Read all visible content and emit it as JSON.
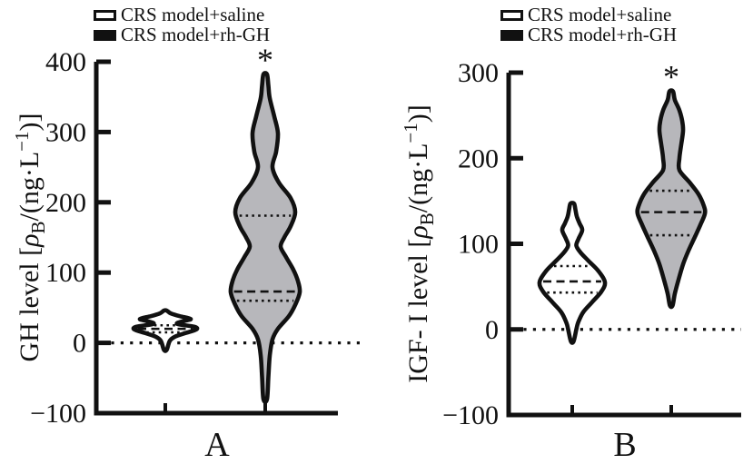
{
  "colors": {
    "ink": "#111111",
    "gray_fill": "#b7b7bb",
    "white_fill": "#ffffff"
  },
  "chart_data": [
    {
      "type": "violin",
      "panel_label": "A",
      "ylabel": "GH level [ρB/(ng·L⁻¹)]",
      "ylabel_parts": {
        "pre": "GH level [",
        "rho": "ρ",
        "rho_sub": "B",
        "mid": "/(ng·L",
        "sup": "−1",
        "post": ")]"
      },
      "ylim": [
        -100,
        400
      ],
      "yticks": [
        400,
        300,
        200,
        100,
        0,
        -100
      ],
      "zero_line": 0,
      "significance_marker": "*",
      "legend": [
        {
          "swatch": "open",
          "label": "CRS model+saline"
        },
        {
          "swatch": "filled",
          "label": "CRS model+rh-GH"
        }
      ],
      "groups": [
        {
          "name": "CRS model+saline",
          "fill": "#ffffff",
          "significant": false,
          "median": 20,
          "quartile_low": 15,
          "quartile_high": 25,
          "min": -10,
          "max": 46,
          "profile": [
            [
              46,
              1.5
            ],
            [
              42,
              6
            ],
            [
              38,
              16
            ],
            [
              34,
              28
            ],
            [
              31,
              20
            ],
            [
              27,
              13
            ],
            [
              23,
              32
            ],
            [
              19,
              34
            ],
            [
              14,
              22
            ],
            [
              9,
              11
            ],
            [
              3,
              5
            ],
            [
              -10,
              1.5
            ]
          ]
        },
        {
          "name": "CRS model+rh-GH",
          "fill": "#b7b7bb",
          "significant": true,
          "median": 73,
          "quartile_low": 60,
          "quartile_high": 181,
          "min": -80,
          "max": 382,
          "profile": [
            [
              382,
              2
            ],
            [
              366,
              3.5
            ],
            [
              348,
              5
            ],
            [
              322,
              10
            ],
            [
              298,
              14
            ],
            [
              272,
              12
            ],
            [
              250,
              8
            ],
            [
              228,
              15
            ],
            [
              206,
              28
            ],
            [
              186,
              33
            ],
            [
              166,
              28
            ],
            [
              150,
              21
            ],
            [
              137,
              17
            ],
            [
              122,
              23
            ],
            [
              104,
              31
            ],
            [
              88,
              36
            ],
            [
              72,
              38
            ],
            [
              54,
              33
            ],
            [
              38,
              26
            ],
            [
              20,
              14
            ],
            [
              5,
              8
            ],
            [
              -18,
              5
            ],
            [
              -48,
              3.5
            ],
            [
              -80,
              2
            ]
          ]
        }
      ]
    },
    {
      "type": "violin",
      "panel_label": "B",
      "ylabel": "IGF-Ⅰ level [ρB/(ng·L⁻¹)]",
      "ylabel_parts": {
        "pre": "IGF- I level [",
        "rho": "ρ",
        "rho_sub": "B",
        "mid": "/(ng·L",
        "sup": "−1",
        "post": ")]"
      },
      "ylim": [
        -100,
        300
      ],
      "yticks": [
        300,
        200,
        100,
        0,
        -100
      ],
      "zero_line": 0,
      "significance_marker": "*",
      "legend": [
        {
          "swatch": "open",
          "label": "CRS model+saline"
        },
        {
          "swatch": "filled",
          "label": "CRS model+rh-GH"
        }
      ],
      "groups": [
        {
          "name": "CRS model+saline",
          "fill": "#ffffff",
          "significant": false,
          "median": 56,
          "quartile_low": 43,
          "quartile_high": 74,
          "min": -14,
          "max": 147,
          "profile": [
            [
              147,
              2
            ],
            [
              140,
              3.5
            ],
            [
              132,
              5
            ],
            [
              124,
              8
            ],
            [
              116,
              11
            ],
            [
              106,
              7
            ],
            [
              98,
              4.5
            ],
            [
              90,
              9
            ],
            [
              80,
              18
            ],
            [
              68,
              29
            ],
            [
              55,
              36
            ],
            [
              44,
              32
            ],
            [
              32,
              22
            ],
            [
              20,
              12
            ],
            [
              8,
              6.5
            ],
            [
              0,
              4.5
            ],
            [
              -14,
              1.5
            ]
          ]
        },
        {
          "name": "CRS model+rh-GH",
          "fill": "#b7b7bb",
          "significant": true,
          "median": 137,
          "quartile_low": 110,
          "quartile_high": 162,
          "min": 28,
          "max": 278,
          "profile": [
            [
              278,
              2
            ],
            [
              268,
              4
            ],
            [
              256,
              9
            ],
            [
              244,
              12
            ],
            [
              232,
              13
            ],
            [
              216,
              11
            ],
            [
              200,
              9
            ],
            [
              186,
              9
            ],
            [
              172,
              20
            ],
            [
              158,
              30
            ],
            [
              144,
              36
            ],
            [
              135,
              37
            ],
            [
              122,
              32
            ],
            [
              108,
              26
            ],
            [
              92,
              19
            ],
            [
              76,
              13
            ],
            [
              58,
              8
            ],
            [
              42,
              4
            ],
            [
              28,
              1.5
            ]
          ]
        }
      ]
    }
  ]
}
